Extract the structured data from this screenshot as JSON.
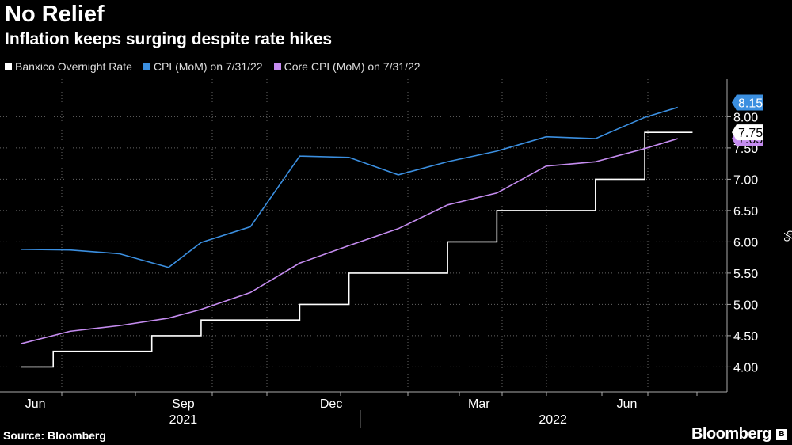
{
  "chart_data": {
    "type": "line",
    "title": "No Relief",
    "subtitle": "Inflation keeps surging despite rate hikes",
    "ylabel": "%",
    "ylim": [
      3.6,
      8.6
    ],
    "yticks": [
      "4.00",
      "4.50",
      "5.00",
      "5.50",
      "6.00",
      "6.50",
      "7.00",
      "7.50",
      "8.00"
    ],
    "ytick_values": [
      4.0,
      4.5,
      5.0,
      5.5,
      6.0,
      6.5,
      7.0,
      7.5,
      8.0
    ],
    "x_month_labels": [
      {
        "label": "Jun",
        "month_index": 0
      },
      {
        "label": "Sep",
        "month_index": 3
      },
      {
        "label": "Dec",
        "month_index": 6
      },
      {
        "label": "Mar",
        "month_index": 9
      },
      {
        "label": "Jun",
        "month_index": 12
      }
    ],
    "x_year_labels": [
      {
        "label": "2021",
        "month_index": 3
      },
      {
        "label": "2022",
        "month_index": 10.5
      }
    ],
    "grid": true,
    "legend_position": "top-left",
    "series": [
      {
        "name": "Banxico Overnight Rate",
        "color": "#ffffff",
        "step": true,
        "x": [
          -0.33,
          0.33,
          1.33,
          2.33,
          3.33,
          4.33,
          5.33,
          6.33,
          7.33,
          8.33,
          9.33,
          10.33,
          11.33,
          12.33
        ],
        "y": [
          4.0,
          4.25,
          4.25,
          4.5,
          4.75,
          4.75,
          5.0,
          5.5,
          5.5,
          6.0,
          6.5,
          6.5,
          7.0,
          7.75
        ],
        "x_end": 13.3,
        "last_label": "7.75"
      },
      {
        "name": "CPI (MoM) on 7/31/22",
        "color": "#3b8fe0",
        "x": [
          -0.33,
          0.67,
          1.67,
          2.67,
          3.33,
          4.33,
          5.33,
          6.33,
          7.33,
          8.33,
          9.33,
          10.33,
          11.33,
          12.33,
          13.0
        ],
        "y": [
          5.88,
          5.87,
          5.81,
          5.59,
          5.99,
          6.24,
          7.37,
          7.35,
          7.07,
          7.28,
          7.45,
          7.68,
          7.65,
          7.99,
          8.15
        ],
        "last_label": "8.15"
      },
      {
        "name": "Core CPI (MoM) on 7/31/22",
        "color": "#c58cf0",
        "x": [
          -0.33,
          0.67,
          1.67,
          2.67,
          3.33,
          4.33,
          5.33,
          6.33,
          7.33,
          8.33,
          9.33,
          10.33,
          11.33,
          12.33,
          13.0
        ],
        "y": [
          4.37,
          4.57,
          4.66,
          4.78,
          4.92,
          5.19,
          5.66,
          5.94,
          6.21,
          6.59,
          6.78,
          7.21,
          7.28,
          7.49,
          7.65
        ],
        "last_label": "7.65"
      }
    ]
  },
  "source": "Source: Bloomberg",
  "brand": "Bloomberg"
}
